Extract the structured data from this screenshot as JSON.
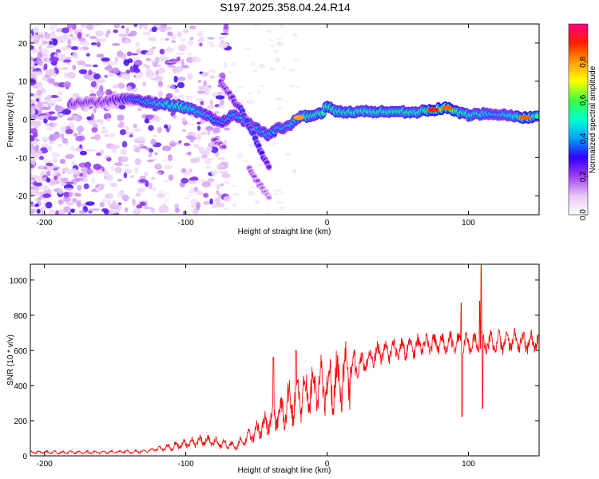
{
  "title": "S197.2025.358.04.24.R14",
  "chart_data": [
    {
      "type": "heatmap",
      "name": "spectrogram",
      "xlabel": "Height of straight line (km)",
      "ylabel": "Frequency (Hz)",
      "xlim": [
        -210,
        150
      ],
      "ylim": [
        -25,
        25
      ],
      "xticks": [
        -200,
        -100,
        0,
        100
      ],
      "yticks": [
        -20,
        -10,
        0,
        10,
        20
      ],
      "colorbar": {
        "label": "Normalized spectral amplitude",
        "range": [
          0,
          1
        ],
        "ticks": [
          0.0,
          0.2,
          0.4,
          0.6,
          0.8
        ],
        "colors": [
          "#ffffff",
          "#e6c6f5",
          "#a040f0",
          "#3000ff",
          "#00a0ff",
          "#00ffd0",
          "#40ff40",
          "#ffff00",
          "#ffa000",
          "#ff2000",
          "#ff0080"
        ]
      },
      "ridge": [
        {
          "x": -182,
          "y": 4.0,
          "a": 0.25
        },
        {
          "x": -170,
          "y": 4.5,
          "a": 0.25
        },
        {
          "x": -158,
          "y": 4.5,
          "a": 0.25
        },
        {
          "x": -146,
          "y": 5.5,
          "a": 0.3
        },
        {
          "x": -135,
          "y": 5.0,
          "a": 0.4
        },
        {
          "x": -125,
          "y": 4.5,
          "a": 0.45
        },
        {
          "x": -115,
          "y": 4.0,
          "a": 0.5
        },
        {
          "x": -105,
          "y": 3.5,
          "a": 0.55
        },
        {
          "x": -95,
          "y": 2.5,
          "a": 0.5
        },
        {
          "x": -85,
          "y": 1.0,
          "a": 0.45
        },
        {
          "x": -75,
          "y": -1.0,
          "a": 0.4
        },
        {
          "x": -66,
          "y": 1.5,
          "a": 0.45
        },
        {
          "x": -58,
          "y": -0.5,
          "a": 0.45
        },
        {
          "x": -50,
          "y": -2.5,
          "a": 0.45
        },
        {
          "x": -42,
          "y": -4.0,
          "a": 0.45
        },
        {
          "x": -35,
          "y": -2.5,
          "a": 0.45
        },
        {
          "x": -28,
          "y": -2.0,
          "a": 0.45
        },
        {
          "x": -20,
          "y": 0.5,
          "a": 0.5
        },
        {
          "x": -12,
          "y": 1.0,
          "a": 0.55
        },
        {
          "x": -4,
          "y": 1.5,
          "a": 0.55
        },
        {
          "x": 0,
          "y": 3.5,
          "a": 0.6
        },
        {
          "x": 6,
          "y": 2.0,
          "a": 0.55
        },
        {
          "x": 15,
          "y": 2.0,
          "a": 0.55
        },
        {
          "x": 25,
          "y": 2.0,
          "a": 0.55
        },
        {
          "x": 35,
          "y": 2.0,
          "a": 0.55
        },
        {
          "x": 45,
          "y": 2.0,
          "a": 0.55
        },
        {
          "x": 55,
          "y": 2.0,
          "a": 0.55
        },
        {
          "x": 65,
          "y": 2.0,
          "a": 0.55
        },
        {
          "x": 75,
          "y": 2.5,
          "a": 0.65
        },
        {
          "x": 85,
          "y": 3.0,
          "a": 0.7
        },
        {
          "x": 90,
          "y": 2.5,
          "a": 0.65
        },
        {
          "x": 95,
          "y": 1.5,
          "a": 0.55
        },
        {
          "x": 100,
          "y": 1.0,
          "a": 0.55
        },
        {
          "x": 108,
          "y": 1.5,
          "a": 0.5
        },
        {
          "x": 118,
          "y": 1.5,
          "a": 0.45
        },
        {
          "x": 130,
          "y": 1.0,
          "a": 0.5
        },
        {
          "x": 140,
          "y": 0.5,
          "a": 0.65
        },
        {
          "x": 150,
          "y": 0.5,
          "a": 0.55
        }
      ],
      "branches": [
        {
          "x": -75,
          "y": 9.5,
          "a": 0.25
        },
        {
          "x": -68,
          "y": 6.0,
          "a": 0.25
        },
        {
          "x": -60,
          "y": 2.0,
          "a": 0.35
        },
        {
          "x": -52,
          "y": -4.0,
          "a": 0.35
        },
        {
          "x": -45,
          "y": -10.0,
          "a": 0.3
        },
        {
          "x": -40,
          "y": -13.0,
          "a": 0.25
        },
        {
          "x": -55,
          "y": -13.0,
          "a": 0.2
        },
        {
          "x": -48,
          "y": -17.0,
          "a": 0.2
        },
        {
          "x": -40,
          "y": -21.0,
          "a": 0.15
        },
        {
          "x": -80,
          "y": -5.0,
          "a": 0.25
        },
        {
          "x": -72,
          "y": -8.0,
          "a": 0.2
        }
      ],
      "peaks": [
        {
          "x": 75,
          "y": 2.5,
          "a": 0.9
        },
        {
          "x": 85,
          "y": 3.0,
          "a": 0.85
        },
        {
          "x": 140,
          "y": 0.5,
          "a": 0.85
        },
        {
          "x": -20,
          "y": 0.5,
          "a": 0.8
        }
      ]
    },
    {
      "type": "line",
      "name": "snr",
      "xlabel": "Height of straight line (km)",
      "ylabel": "SNR (10 * v/v)",
      "xlim": [
        -210,
        150
      ],
      "ylim": [
        0,
        1090
      ],
      "xticks": [
        -200,
        -100,
        0,
        100
      ],
      "yticks": [
        0,
        200,
        400,
        600,
        800,
        1000
      ],
      "color": "#ff0000",
      "envelope": [
        {
          "x": -210,
          "y": 20
        },
        {
          "x": -160,
          "y": 20
        },
        {
          "x": -130,
          "y": 25
        },
        {
          "x": -115,
          "y": 45
        },
        {
          "x": -100,
          "y": 70
        },
        {
          "x": -85,
          "y": 90
        },
        {
          "x": -75,
          "y": 70
        },
        {
          "x": -65,
          "y": 55
        },
        {
          "x": -55,
          "y": 110
        },
        {
          "x": -45,
          "y": 170
        },
        {
          "x": -35,
          "y": 230
        },
        {
          "x": -25,
          "y": 310
        },
        {
          "x": -15,
          "y": 360
        },
        {
          "x": -5,
          "y": 390
        },
        {
          "x": 5,
          "y": 420
        },
        {
          "x": 15,
          "y": 470
        },
        {
          "x": 25,
          "y": 530
        },
        {
          "x": 35,
          "y": 580
        },
        {
          "x": 50,
          "y": 610
        },
        {
          "x": 70,
          "y": 630
        },
        {
          "x": 90,
          "y": 640
        },
        {
          "x": 110,
          "y": 640
        },
        {
          "x": 130,
          "y": 650
        },
        {
          "x": 150,
          "y": 650
        }
      ],
      "spikes": [
        {
          "x": -38,
          "y": 560
        },
        {
          "x": -22,
          "y": 600
        },
        {
          "x": 95,
          "y": 870
        },
        {
          "x": 95.5,
          "y": 225
        },
        {
          "x": 108,
          "y": 880
        },
        {
          "x": 109,
          "y": 1085
        },
        {
          "x": 110,
          "y": 270
        }
      ]
    }
  ]
}
